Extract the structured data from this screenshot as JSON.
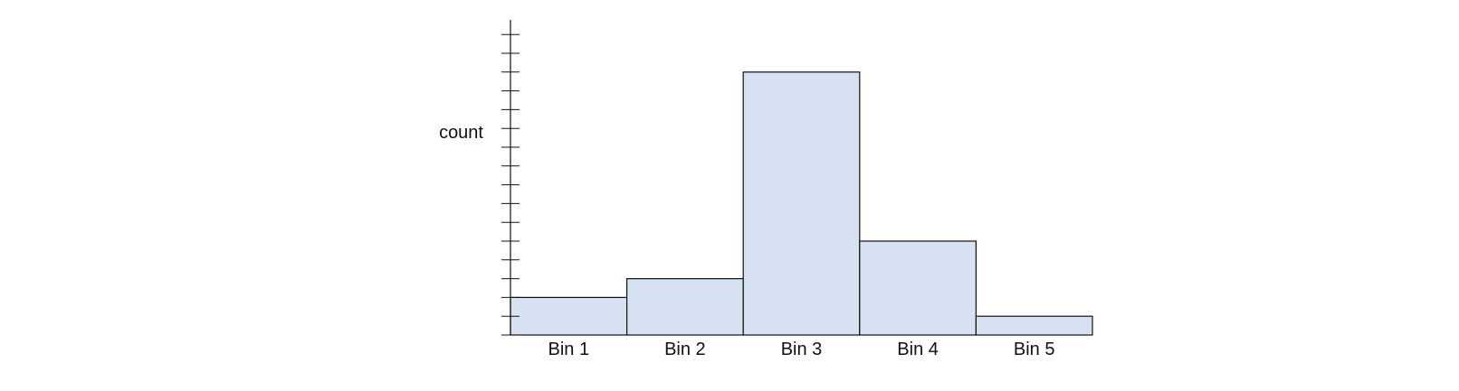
{
  "chart_data": {
    "type": "bar",
    "title": "",
    "xlabel": "",
    "ylabel": "count",
    "categories": [
      "Bin 1",
      "Bin 2",
      "Bin 3",
      "Bin 4",
      "Bin 5"
    ],
    "values": [
      2,
      3,
      14,
      5,
      1
    ],
    "ylim": [
      0,
      16
    ],
    "grid": false,
    "legend": "none",
    "bar_fill": "#d6e2f2",
    "bar_stroke": "#111111",
    "axis_color": "#111111"
  }
}
